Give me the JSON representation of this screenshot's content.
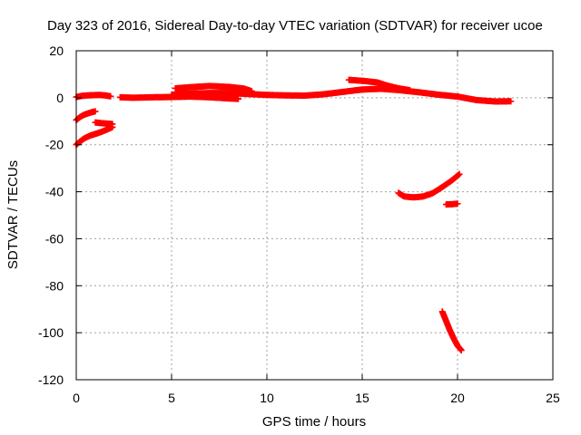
{
  "chart_data": {
    "type": "scatter",
    "title": "Day 323 of 2016, Sidereal Day-to-day VTEC variation (SDTVAR) for receiver ucoe",
    "xlabel": "GPS time / hours",
    "ylabel": "SDTVAR / TECUs",
    "xlim": [
      0,
      25
    ],
    "ylim": [
      -120,
      20
    ],
    "xticks": [
      "0",
      "5",
      "10",
      "15",
      "20",
      "25"
    ],
    "yticks": [
      "20",
      "0",
      "-20",
      "-40",
      "-60",
      "-80",
      "-100",
      "-120"
    ],
    "grid": true,
    "series_color": "#ff0000",
    "series": [
      {
        "points": [
          [
            0.0,
            0.3
          ],
          [
            0.3,
            0.8
          ],
          [
            0.6,
            1.0
          ],
          [
            0.9,
            1.1
          ],
          [
            1.2,
            1.2
          ],
          [
            1.5,
            1.0
          ],
          [
            1.8,
            0.6
          ]
        ]
      },
      {
        "points": [
          [
            0.0,
            -9.5
          ],
          [
            0.2,
            -8.2
          ],
          [
            0.4,
            -7.3
          ],
          [
            0.6,
            -6.7
          ],
          [
            0.8,
            -6.2
          ],
          [
            1.0,
            -5.8
          ]
        ]
      },
      {
        "points": [
          [
            0.0,
            -20.0
          ],
          [
            0.2,
            -18.6
          ],
          [
            0.4,
            -17.4
          ],
          [
            0.7,
            -16.2
          ],
          [
            1.0,
            -15.4
          ],
          [
            1.3,
            -14.6
          ],
          [
            1.6,
            -13.6
          ],
          [
            1.9,
            -12.5
          ]
        ]
      },
      {
        "points": [
          [
            1.0,
            -10.5
          ],
          [
            1.3,
            -10.8
          ],
          [
            1.6,
            -11.0
          ],
          [
            1.9,
            -11.2
          ]
        ]
      },
      {
        "points": [
          [
            2.3,
            0.2
          ],
          [
            3.0,
            0.0
          ],
          [
            4.0,
            0.2
          ],
          [
            5.0,
            0.3
          ],
          [
            6.0,
            0.5
          ],
          [
            7.0,
            0.2
          ],
          [
            8.0,
            -0.3
          ],
          [
            8.5,
            -0.5
          ]
        ]
      },
      {
        "points": [
          [
            5.0,
            1.3
          ],
          [
            6.0,
            1.8
          ],
          [
            7.0,
            2.0
          ],
          [
            8.0,
            2.0
          ],
          [
            9.0,
            1.6
          ],
          [
            10.0,
            1.2
          ],
          [
            11.0,
            1.0
          ],
          [
            12.0,
            0.9
          ],
          [
            13.0,
            1.5
          ],
          [
            14.0,
            2.5
          ],
          [
            15.0,
            3.5
          ],
          [
            16.0,
            3.8
          ],
          [
            17.0,
            3.2
          ],
          [
            18.0,
            2.3
          ],
          [
            19.0,
            1.3
          ],
          [
            20.0,
            0.5
          ],
          [
            21.0,
            -1.0
          ],
          [
            22.0,
            -1.6
          ],
          [
            22.8,
            -1.5
          ]
        ]
      },
      {
        "points": [
          [
            5.2,
            4.0
          ],
          [
            6.0,
            4.5
          ],
          [
            7.0,
            5.0
          ],
          [
            8.0,
            4.6
          ],
          [
            8.8,
            3.9
          ],
          [
            9.2,
            2.8
          ]
        ]
      },
      {
        "points": [
          [
            14.3,
            7.6
          ],
          [
            15.0,
            7.2
          ],
          [
            15.8,
            6.5
          ],
          [
            16.3,
            5.2
          ],
          [
            16.9,
            4.0
          ],
          [
            17.5,
            3.2
          ]
        ]
      },
      {
        "points": [
          [
            16.9,
            -40.5
          ],
          [
            17.2,
            -42.0
          ],
          [
            17.7,
            -42.4
          ],
          [
            18.2,
            -42.0
          ],
          [
            18.7,
            -40.6
          ],
          [
            19.2,
            -38.0
          ],
          [
            19.7,
            -35.2
          ],
          [
            20.1,
            -32.5
          ]
        ]
      },
      {
        "points": [
          [
            19.4,
            -45.4
          ],
          [
            19.7,
            -45.3
          ],
          [
            20.0,
            -45.1
          ]
        ]
      },
      {
        "points": [
          [
            19.2,
            -91.0
          ],
          [
            19.4,
            -95.0
          ],
          [
            19.6,
            -99.0
          ],
          [
            19.8,
            -102.5
          ],
          [
            20.0,
            -105.5
          ],
          [
            20.2,
            -107.5
          ]
        ]
      }
    ]
  }
}
